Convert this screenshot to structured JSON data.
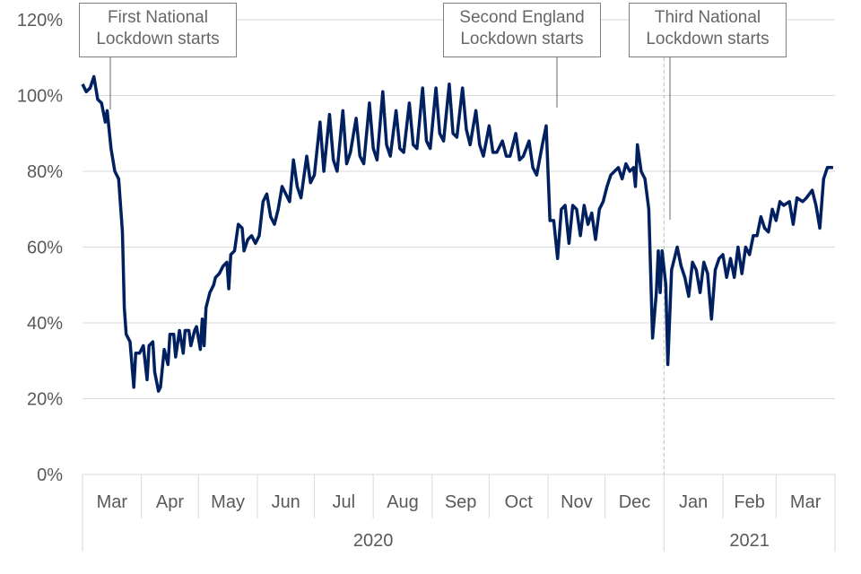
{
  "chart_data": {
    "type": "line",
    "title": "",
    "xlabel": "",
    "ylabel": "",
    "ylim": [
      0,
      120
    ],
    "y_ticks": [
      "0%",
      "20%",
      "40%",
      "60%",
      "80%",
      "100%",
      "120%"
    ],
    "x_month_labels": [
      "Mar",
      "Apr",
      "May",
      "Jun",
      "Jul",
      "Aug",
      "Sep",
      "Oct",
      "Nov",
      "Dec",
      "Jan",
      "Feb",
      "Mar"
    ],
    "x_year_labels": [
      "2020",
      "2021"
    ],
    "grid": "horizontal",
    "line_color": "#002060",
    "annotations": [
      {
        "line1": "First National",
        "line2": "Lockdown starts"
      },
      {
        "line1": "Second England",
        "line2": "Lockdown starts"
      },
      {
        "line1": "Third National",
        "line2": "Lockdown starts"
      }
    ],
    "points": [
      [
        "2020-03-01",
        103
      ],
      [
        "2020-03-03",
        101
      ],
      [
        "2020-03-05",
        102
      ],
      [
        "2020-03-07",
        105
      ],
      [
        "2020-03-09",
        99
      ],
      [
        "2020-03-11",
        98
      ],
      [
        "2020-03-13",
        93
      ],
      [
        "2020-03-14",
        96
      ],
      [
        "2020-03-16",
        86
      ],
      [
        "2020-03-18",
        80
      ],
      [
        "2020-03-20",
        78
      ],
      [
        "2020-03-22",
        64
      ],
      [
        "2020-03-23",
        44
      ],
      [
        "2020-03-24",
        37
      ],
      [
        "2020-03-26",
        35
      ],
      [
        "2020-03-28",
        23
      ],
      [
        "2020-03-29",
        32
      ],
      [
        "2020-03-31",
        32
      ],
      [
        "2020-04-02",
        34
      ],
      [
        "2020-04-04",
        25
      ],
      [
        "2020-04-05",
        34
      ],
      [
        "2020-04-07",
        35
      ],
      [
        "2020-04-08",
        27
      ],
      [
        "2020-04-10",
        22
      ],
      [
        "2020-04-11",
        23
      ],
      [
        "2020-04-13",
        33
      ],
      [
        "2020-04-15",
        29
      ],
      [
        "2020-04-16",
        37
      ],
      [
        "2020-04-18",
        37
      ],
      [
        "2020-04-19",
        31
      ],
      [
        "2020-04-21",
        38
      ],
      [
        "2020-04-23",
        32
      ],
      [
        "2020-04-24",
        38
      ],
      [
        "2020-04-26",
        38
      ],
      [
        "2020-04-27",
        34
      ],
      [
        "2020-04-29",
        38
      ],
      [
        "2020-04-30",
        39
      ],
      [
        "2020-05-02",
        33
      ],
      [
        "2020-05-03",
        41
      ],
      [
        "2020-05-04",
        34
      ],
      [
        "2020-05-05",
        44
      ],
      [
        "2020-05-07",
        48
      ],
      [
        "2020-05-09",
        50
      ],
      [
        "2020-05-10",
        52
      ],
      [
        "2020-05-12",
        53
      ],
      [
        "2020-05-14",
        55
      ],
      [
        "2020-05-16",
        56
      ],
      [
        "2020-05-17",
        49
      ],
      [
        "2020-05-18",
        58
      ],
      [
        "2020-05-20",
        59
      ],
      [
        "2020-05-22",
        66
      ],
      [
        "2020-05-24",
        65
      ],
      [
        "2020-05-25",
        59
      ],
      [
        "2020-05-27",
        62
      ],
      [
        "2020-05-29",
        63
      ],
      [
        "2020-05-31",
        61
      ],
      [
        "2020-06-02",
        63
      ],
      [
        "2020-06-04",
        72
      ],
      [
        "2020-06-06",
        74
      ],
      [
        "2020-06-08",
        68
      ],
      [
        "2020-06-10",
        66
      ],
      [
        "2020-06-12",
        70
      ],
      [
        "2020-06-14",
        76
      ],
      [
        "2020-06-16",
        74
      ],
      [
        "2020-06-18",
        72
      ],
      [
        "2020-06-20",
        83
      ],
      [
        "2020-06-22",
        76
      ],
      [
        "2020-06-24",
        73
      ],
      [
        "2020-06-27",
        84
      ],
      [
        "2020-06-29",
        77
      ],
      [
        "2020-07-01",
        79
      ],
      [
        "2020-07-04",
        93
      ],
      [
        "2020-07-06",
        80
      ],
      [
        "2020-07-09",
        95
      ],
      [
        "2020-07-11",
        83
      ],
      [
        "2020-07-13",
        80
      ],
      [
        "2020-07-16",
        96
      ],
      [
        "2020-07-18",
        82
      ],
      [
        "2020-07-20",
        85
      ],
      [
        "2020-07-23",
        94
      ],
      [
        "2020-07-25",
        84
      ],
      [
        "2020-07-27",
        82
      ],
      [
        "2020-07-30",
        98
      ],
      [
        "2020-08-01",
        86
      ],
      [
        "2020-08-03",
        83
      ],
      [
        "2020-08-06",
        101
      ],
      [
        "2020-08-08",
        87
      ],
      [
        "2020-08-10",
        84
      ],
      [
        "2020-08-13",
        96
      ],
      [
        "2020-08-15",
        86
      ],
      [
        "2020-08-17",
        85
      ],
      [
        "2020-08-20",
        98
      ],
      [
        "2020-08-22",
        87
      ],
      [
        "2020-08-24",
        86
      ],
      [
        "2020-08-27",
        102
      ],
      [
        "2020-08-29",
        88
      ],
      [
        "2020-08-31",
        86
      ],
      [
        "2020-09-03",
        102
      ],
      [
        "2020-09-05",
        90
      ],
      [
        "2020-09-07",
        88
      ],
      [
        "2020-09-10",
        103
      ],
      [
        "2020-09-12",
        90
      ],
      [
        "2020-09-14",
        89
      ],
      [
        "2020-09-17",
        102
      ],
      [
        "2020-09-19",
        91
      ],
      [
        "2020-09-21",
        87
      ],
      [
        "2020-09-24",
        96
      ],
      [
        "2020-09-26",
        87
      ],
      [
        "2020-09-28",
        84
      ],
      [
        "2020-10-01",
        92
      ],
      [
        "2020-10-03",
        85
      ],
      [
        "2020-10-05",
        85
      ],
      [
        "2020-10-08",
        88
      ],
      [
        "2020-10-10",
        84
      ],
      [
        "2020-10-12",
        84
      ],
      [
        "2020-10-15",
        90
      ],
      [
        "2020-10-17",
        83
      ],
      [
        "2020-10-19",
        84
      ],
      [
        "2020-10-22",
        88
      ],
      [
        "2020-10-24",
        81
      ],
      [
        "2020-10-26",
        79
      ],
      [
        "2020-10-29",
        87
      ],
      [
        "2020-10-31",
        92
      ],
      [
        "2020-11-02",
        67
      ],
      [
        "2020-11-04",
        67
      ],
      [
        "2020-11-06",
        57
      ],
      [
        "2020-11-08",
        70
      ],
      [
        "2020-11-10",
        71
      ],
      [
        "2020-11-12",
        61
      ],
      [
        "2020-11-14",
        71
      ],
      [
        "2020-11-16",
        70
      ],
      [
        "2020-11-18",
        63
      ],
      [
        "2020-11-20",
        71
      ],
      [
        "2020-11-22",
        66
      ],
      [
        "2020-11-24",
        69
      ],
      [
        "2020-11-26",
        62
      ],
      [
        "2020-11-28",
        70
      ],
      [
        "2020-11-30",
        72
      ],
      [
        "2020-12-02",
        76
      ],
      [
        "2020-12-04",
        79
      ],
      [
        "2020-12-06",
        80
      ],
      [
        "2020-12-08",
        81
      ],
      [
        "2020-12-10",
        78
      ],
      [
        "2020-12-12",
        82
      ],
      [
        "2020-12-14",
        80
      ],
      [
        "2020-12-16",
        81
      ],
      [
        "2020-12-17",
        76
      ],
      [
        "2020-12-18",
        87
      ],
      [
        "2020-12-20",
        80
      ],
      [
        "2020-12-22",
        78
      ],
      [
        "2020-12-24",
        70
      ],
      [
        "2020-12-26",
        36
      ],
      [
        "2020-12-28",
        48
      ],
      [
        "2020-12-29",
        59
      ],
      [
        "2020-12-30",
        48
      ],
      [
        "2020-12-31",
        59
      ],
      [
        "2021-01-02",
        50
      ],
      [
        "2021-01-03",
        29
      ],
      [
        "2021-01-05",
        54
      ],
      [
        "2021-01-08",
        60
      ],
      [
        "2021-01-10",
        55
      ],
      [
        "2021-01-12",
        52
      ],
      [
        "2021-01-14",
        47
      ],
      [
        "2021-01-16",
        56
      ],
      [
        "2021-01-18",
        54
      ],
      [
        "2021-01-20",
        48
      ],
      [
        "2021-01-22",
        56
      ],
      [
        "2021-01-24",
        53
      ],
      [
        "2021-01-26",
        41
      ],
      [
        "2021-01-28",
        54
      ],
      [
        "2021-01-30",
        57
      ],
      [
        "2021-02-01",
        58
      ],
      [
        "2021-02-03",
        52
      ],
      [
        "2021-02-05",
        57
      ],
      [
        "2021-02-07",
        52
      ],
      [
        "2021-02-09",
        60
      ],
      [
        "2021-02-11",
        53
      ],
      [
        "2021-02-13",
        60
      ],
      [
        "2021-02-15",
        58
      ],
      [
        "2021-02-17",
        63
      ],
      [
        "2021-02-19",
        63
      ],
      [
        "2021-02-21",
        68
      ],
      [
        "2021-02-23",
        65
      ],
      [
        "2021-02-25",
        64
      ],
      [
        "2021-02-27",
        70
      ],
      [
        "2021-03-01",
        67
      ],
      [
        "2021-03-03",
        72
      ],
      [
        "2021-03-05",
        71
      ],
      [
        "2021-03-08",
        72
      ],
      [
        "2021-03-10",
        66
      ],
      [
        "2021-03-12",
        73
      ],
      [
        "2021-03-15",
        72
      ],
      [
        "2021-03-17",
        73
      ],
      [
        "2021-03-20",
        75
      ],
      [
        "2021-03-22",
        71
      ],
      [
        "2021-03-24",
        65
      ],
      [
        "2021-03-26",
        78
      ],
      [
        "2021-03-28",
        81
      ],
      [
        "2021-03-31",
        81
      ]
    ]
  }
}
